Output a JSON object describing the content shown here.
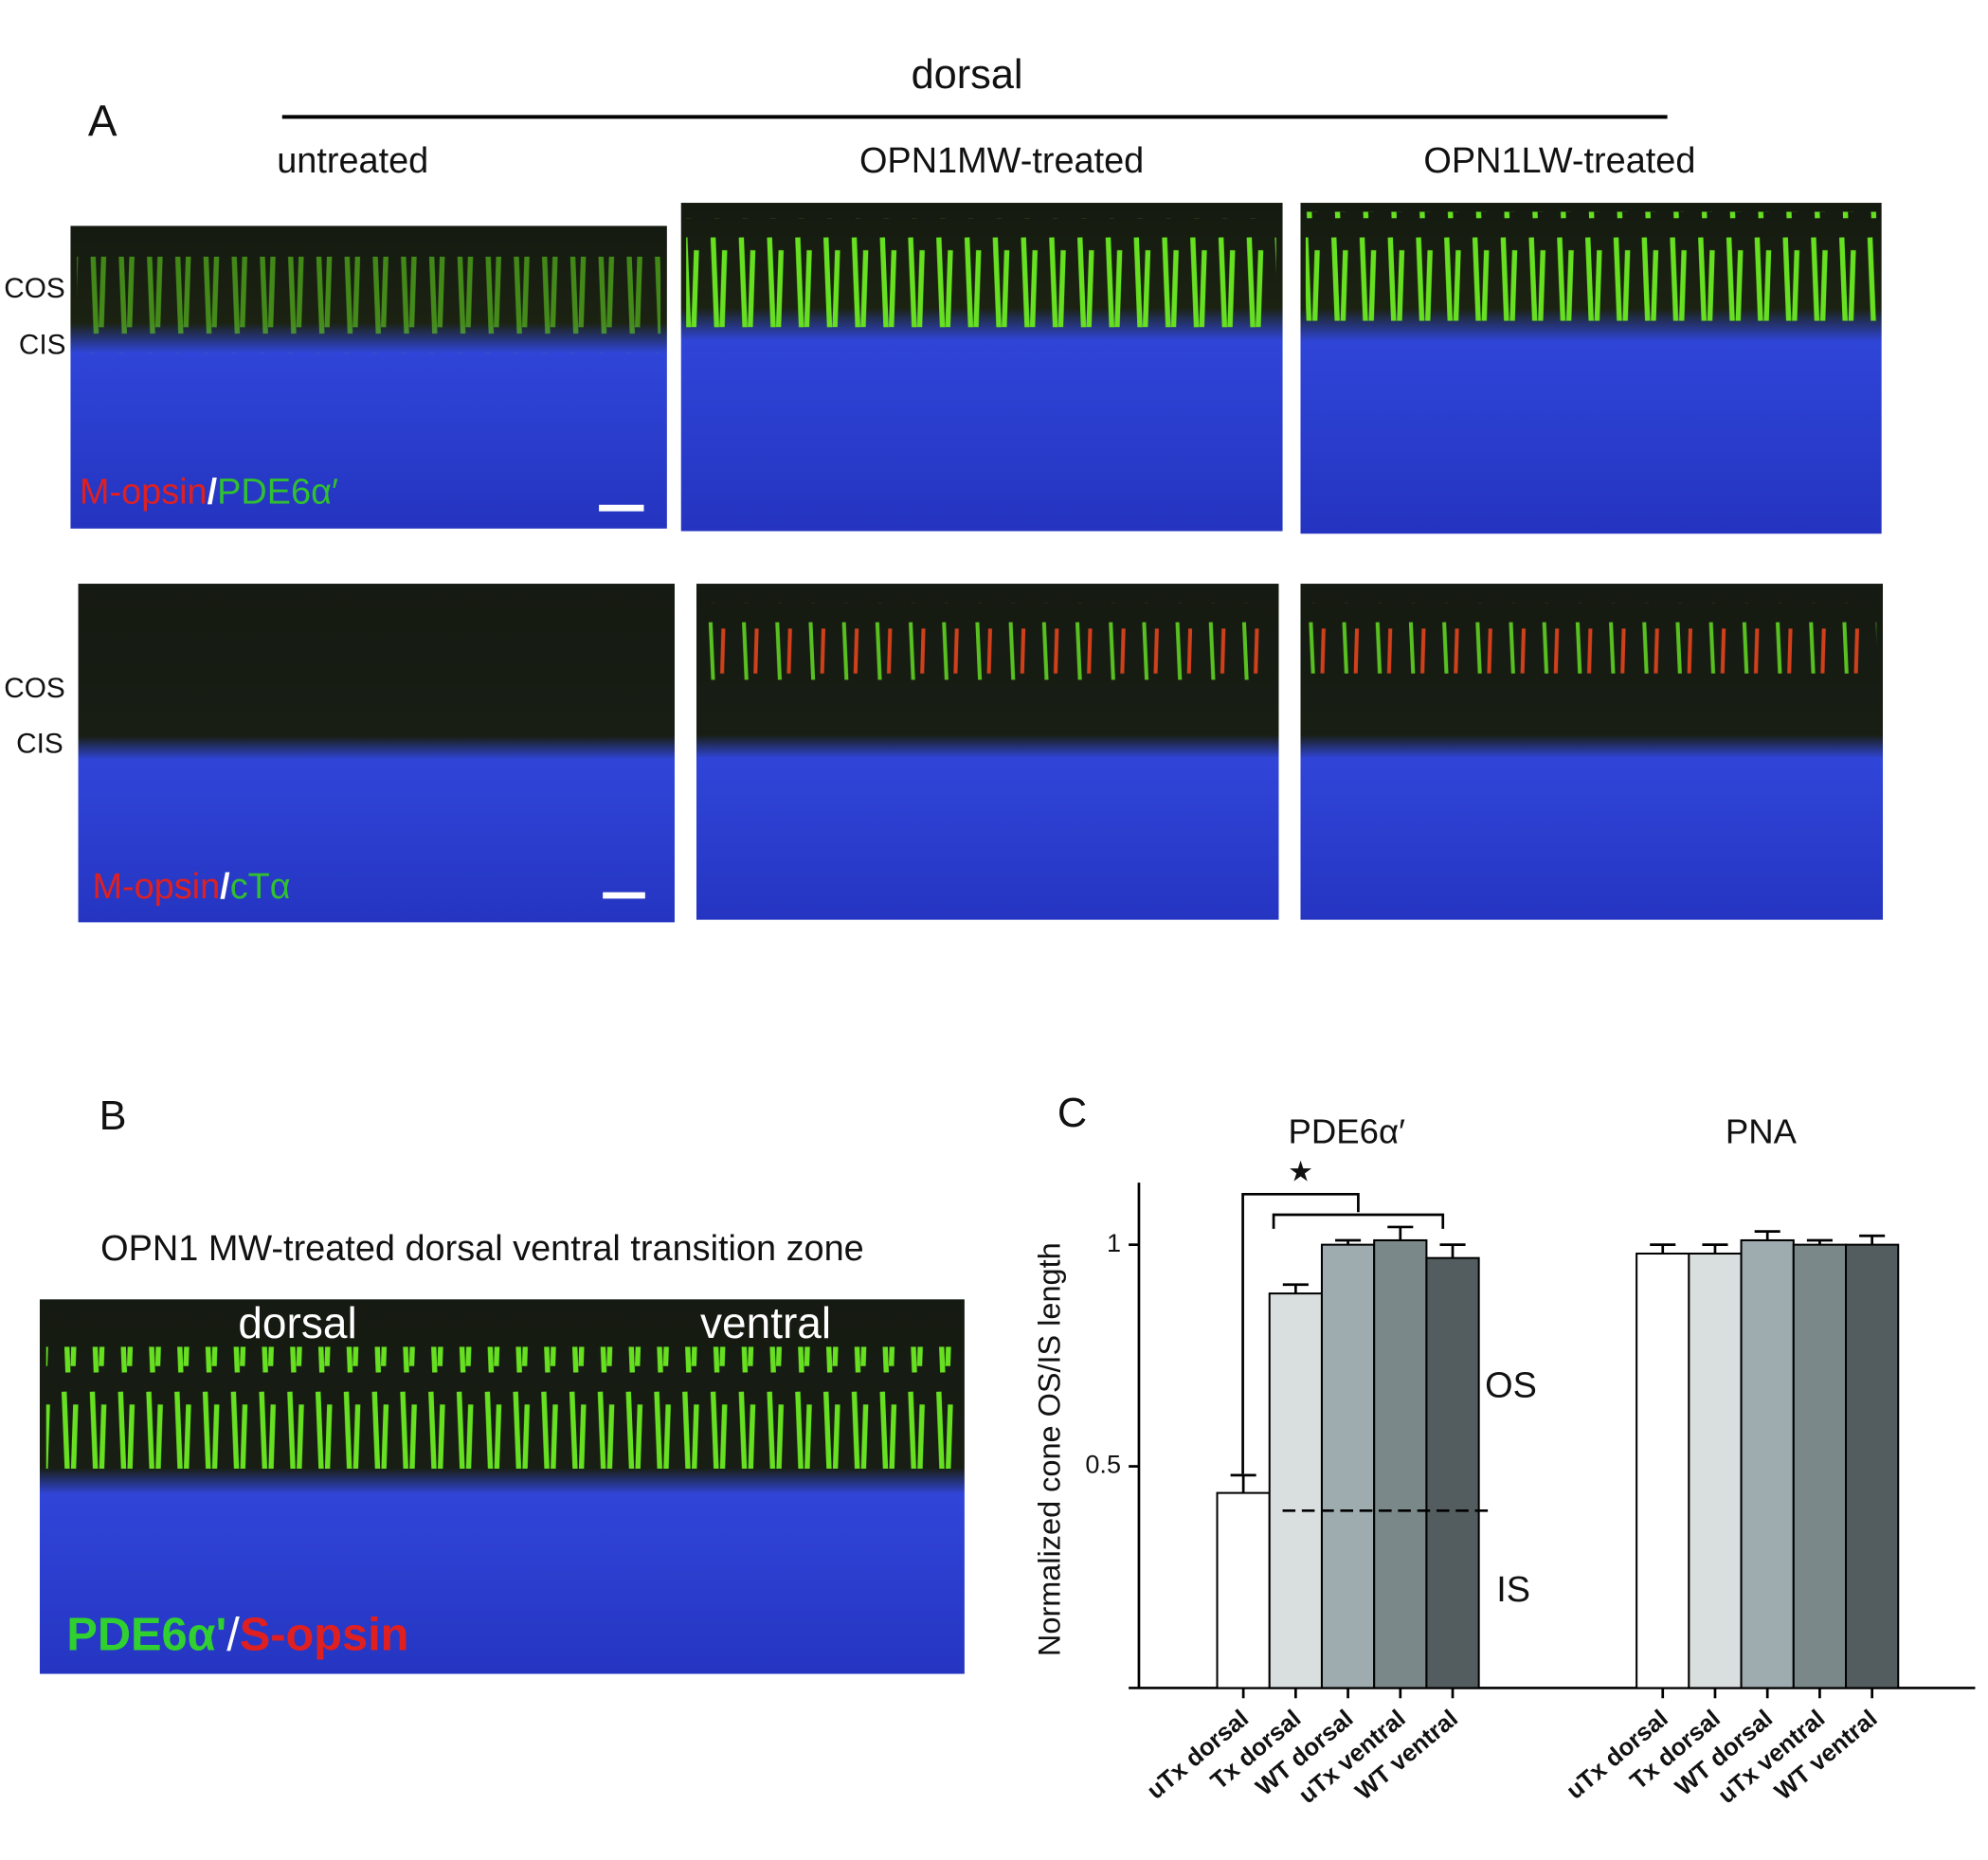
{
  "panel_a": {
    "label": "A",
    "header": "dorsal",
    "columns": [
      "untreated",
      "OPN1MW-treated",
      "OPN1LW-treated"
    ],
    "rows": [
      {
        "layers": [
          "COS",
          "CIS"
        ],
        "stain": [
          "M-opsin",
          "/",
          "PDE6α′"
        ]
      },
      {
        "layers": [
          "COS",
          "CIS"
        ],
        "stain": [
          "M-opsin",
          "/",
          "cTα"
        ]
      }
    ]
  },
  "panel_b": {
    "label": "B",
    "title": "OPN1 MW-treated dorsal ventral transition zone",
    "regions": [
      "dorsal",
      "ventral"
    ],
    "stain": [
      "PDE6α'",
      "/",
      "S-opsin"
    ]
  },
  "chart_data": {
    "type": "bar",
    "label": "C",
    "ylabel": "Normalized cone OS/IS  length",
    "categories": [
      "uTx dorsal",
      "Tx dorsal",
      "WT dorsal",
      "uTx ventral",
      "WT ventral"
    ],
    "colors": [
      "#ffffff",
      "#d9dfde",
      "#9eabaf",
      "#7a8889",
      "#535d5f"
    ],
    "groups": [
      {
        "name": "PDE6α′",
        "values": [
          0.44,
          0.89,
          1.0,
          1.01,
          0.97
        ],
        "errors": [
          0.04,
          0.02,
          0.01,
          0.03,
          0.03
        ]
      },
      {
        "name": "PNA",
        "values": [
          0.98,
          0.98,
          1.01,
          1.0,
          1.0
        ],
        "errors": [
          0.02,
          0.02,
          0.02,
          0.01,
          0.02
        ]
      }
    ],
    "ylim": [
      0,
      1.14
    ],
    "yticks": [
      0.5,
      1
    ],
    "boundary": 0.4,
    "annotations": {
      "significance": "★",
      "upper": "OS",
      "lower": "IS"
    }
  }
}
